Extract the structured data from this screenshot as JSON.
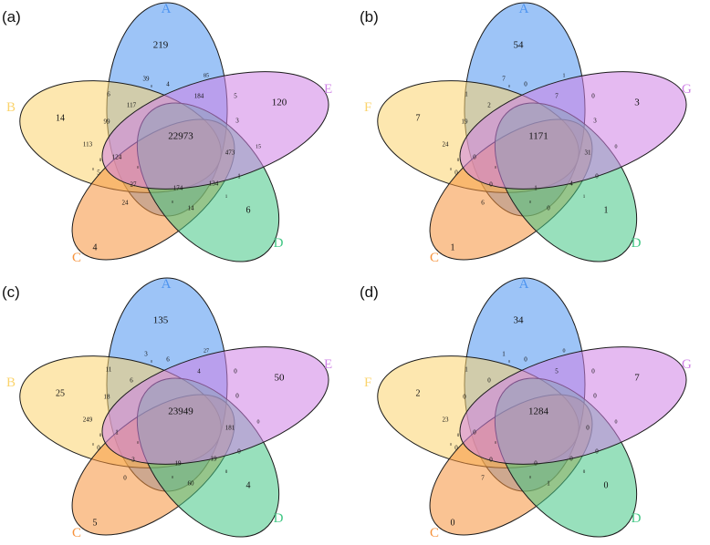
{
  "colors": {
    "A": "#4d94f0",
    "B": "#fbd46e",
    "C": "#f6923b",
    "D": "#43c785",
    "E": "#cf82e6"
  },
  "panels": [
    {
      "letter": "(a)",
      "sets": [
        "A",
        "B",
        "C",
        "D",
        "E"
      ],
      "counts": {
        "A": "219",
        "B": "14",
        "E": "120",
        "C": "4",
        "D": "6",
        "center": "22973",
        "s1": "39",
        "s2": "4",
        "s3": "85",
        "s4": "6",
        "s5": "117",
        "s6": "184",
        "s7": "5",
        "s8": "99",
        "s9": "3",
        "s10": "113",
        "s11": "15",
        "s12": "473",
        "s13": "124",
        "s14": "0",
        "s15": "1",
        "s16": "5",
        "s17": "27",
        "s18": "174",
        "s19": "134",
        "s20": "24",
        "s21": "14",
        "s22": "1",
        "s23": "0",
        "s24": "0",
        "s25": "0",
        "s26": "0"
      }
    },
    {
      "letter": "(b)",
      "sets": [
        "A",
        "F",
        "C",
        "D",
        "G"
      ],
      "counts": {
        "A": "54",
        "B": "7",
        "E": "3",
        "C": "1",
        "D": "1",
        "center": "1171",
        "s1": "7",
        "s2": "0",
        "s3": "1",
        "s4": "1",
        "s5": "2",
        "s6": "7",
        "s7": "0",
        "s8": "19",
        "s9": "3",
        "s10": "24",
        "s11": "0",
        "s12": "31",
        "s13": "0",
        "s14": "0",
        "s15": "0",
        "s16": "0",
        "s17": "0",
        "s18": "1",
        "s19": "4",
        "s20": "6",
        "s21": "0",
        "s22": "1",
        "s23": "0",
        "s24": "0",
        "s25": "0",
        "s26": "0"
      }
    },
    {
      "letter": "(c)",
      "sets": [
        "A",
        "B",
        "C",
        "D",
        "E"
      ],
      "counts": {
        "A": "135",
        "B": "25",
        "E": "50",
        "C": "5",
        "D": "4",
        "center": "23949",
        "s1": "3",
        "s2": "6",
        "s3": "27",
        "s4": "11",
        "s5": "6",
        "s6": "4",
        "s7": "0",
        "s8": "18",
        "s9": "0",
        "s10": "249",
        "s11": "0",
        "s12": "181",
        "s13": "1",
        "s14": "0",
        "s15": "0",
        "s16": "0",
        "s17": "3",
        "s18": "19",
        "s19": "19",
        "s20": "0",
        "s21": "60",
        "s22": "0",
        "s23": "0",
        "s24": "0",
        "s25": "0",
        "s26": "0"
      }
    },
    {
      "letter": "(d)",
      "sets": [
        "A",
        "F",
        "C",
        "D",
        "G"
      ],
      "counts": {
        "A": "34",
        "B": "2",
        "E": "7",
        "C": "0",
        "D": "0",
        "center": "1284",
        "s1": "1",
        "s2": "0",
        "s3": "0",
        "s4": "1",
        "s5": "0",
        "s6": "5",
        "s7": "0",
        "s8": "0",
        "s9": "0",
        "s10": "23",
        "s11": "0",
        "s12": "0",
        "s13": "0",
        "s14": "0",
        "s15": "0",
        "s16": "0",
        "s17": "0",
        "s18": "0",
        "s19": "0",
        "s20": "7",
        "s21": "1",
        "s22": "0",
        "s23": "0",
        "s24": "0",
        "s25": "0",
        "s26": "0"
      }
    }
  ]
}
